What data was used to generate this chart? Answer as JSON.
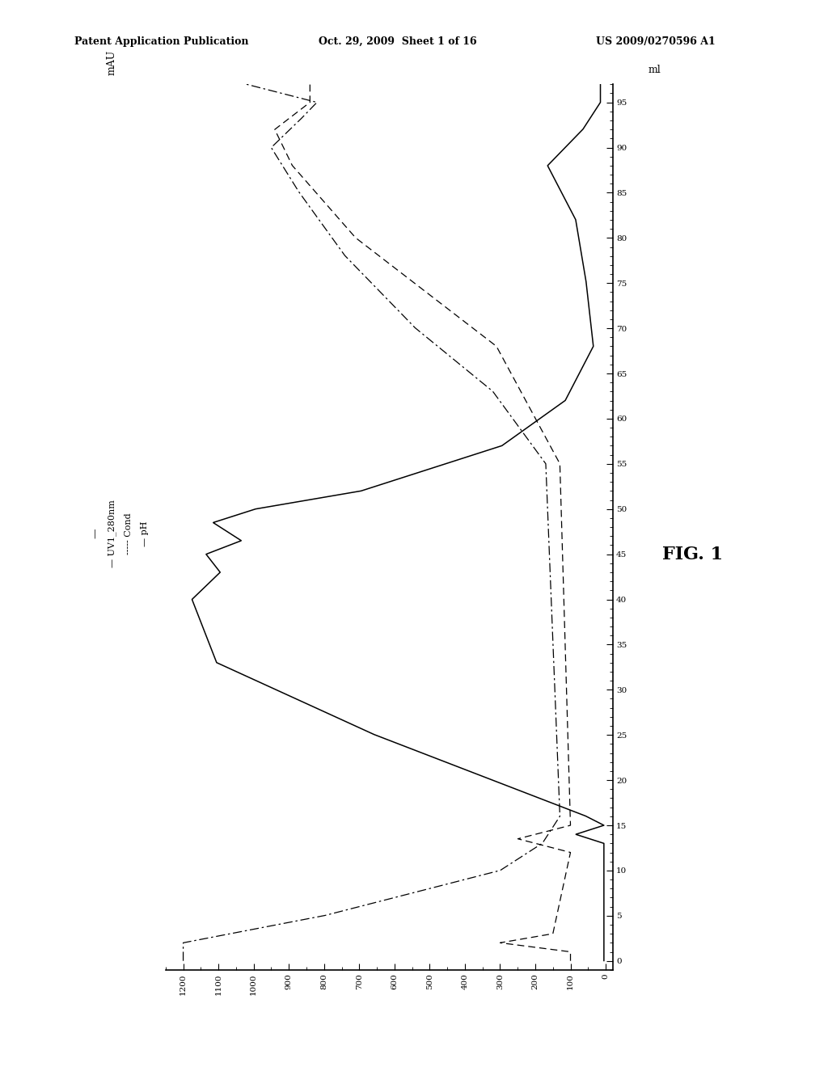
{
  "header_left": "Patent Application Publication",
  "header_mid": "Oct. 29, 2009  Sheet 1 of 16",
  "header_right": "US 2009/0270596 A1",
  "fig_label": "FIG. 1",
  "x_label_right": "ml",
  "y_bottom_label": "mAU",
  "mau_ticks": [
    0,
    100,
    200,
    300,
    400,
    500,
    600,
    700,
    800,
    900,
    1000,
    1100,
    1200
  ],
  "ml_ticks": [
    0,
    5,
    10,
    15,
    20,
    25,
    30,
    35,
    40,
    45,
    50,
    55,
    60,
    65,
    70,
    75,
    80,
    85,
    90,
    95
  ],
  "background_color": "#ffffff",
  "line_color": "#000000",
  "legend_uv": "— UV1_280nm",
  "legend_cond": "----- Cond",
  "legend_ph": "— pH"
}
